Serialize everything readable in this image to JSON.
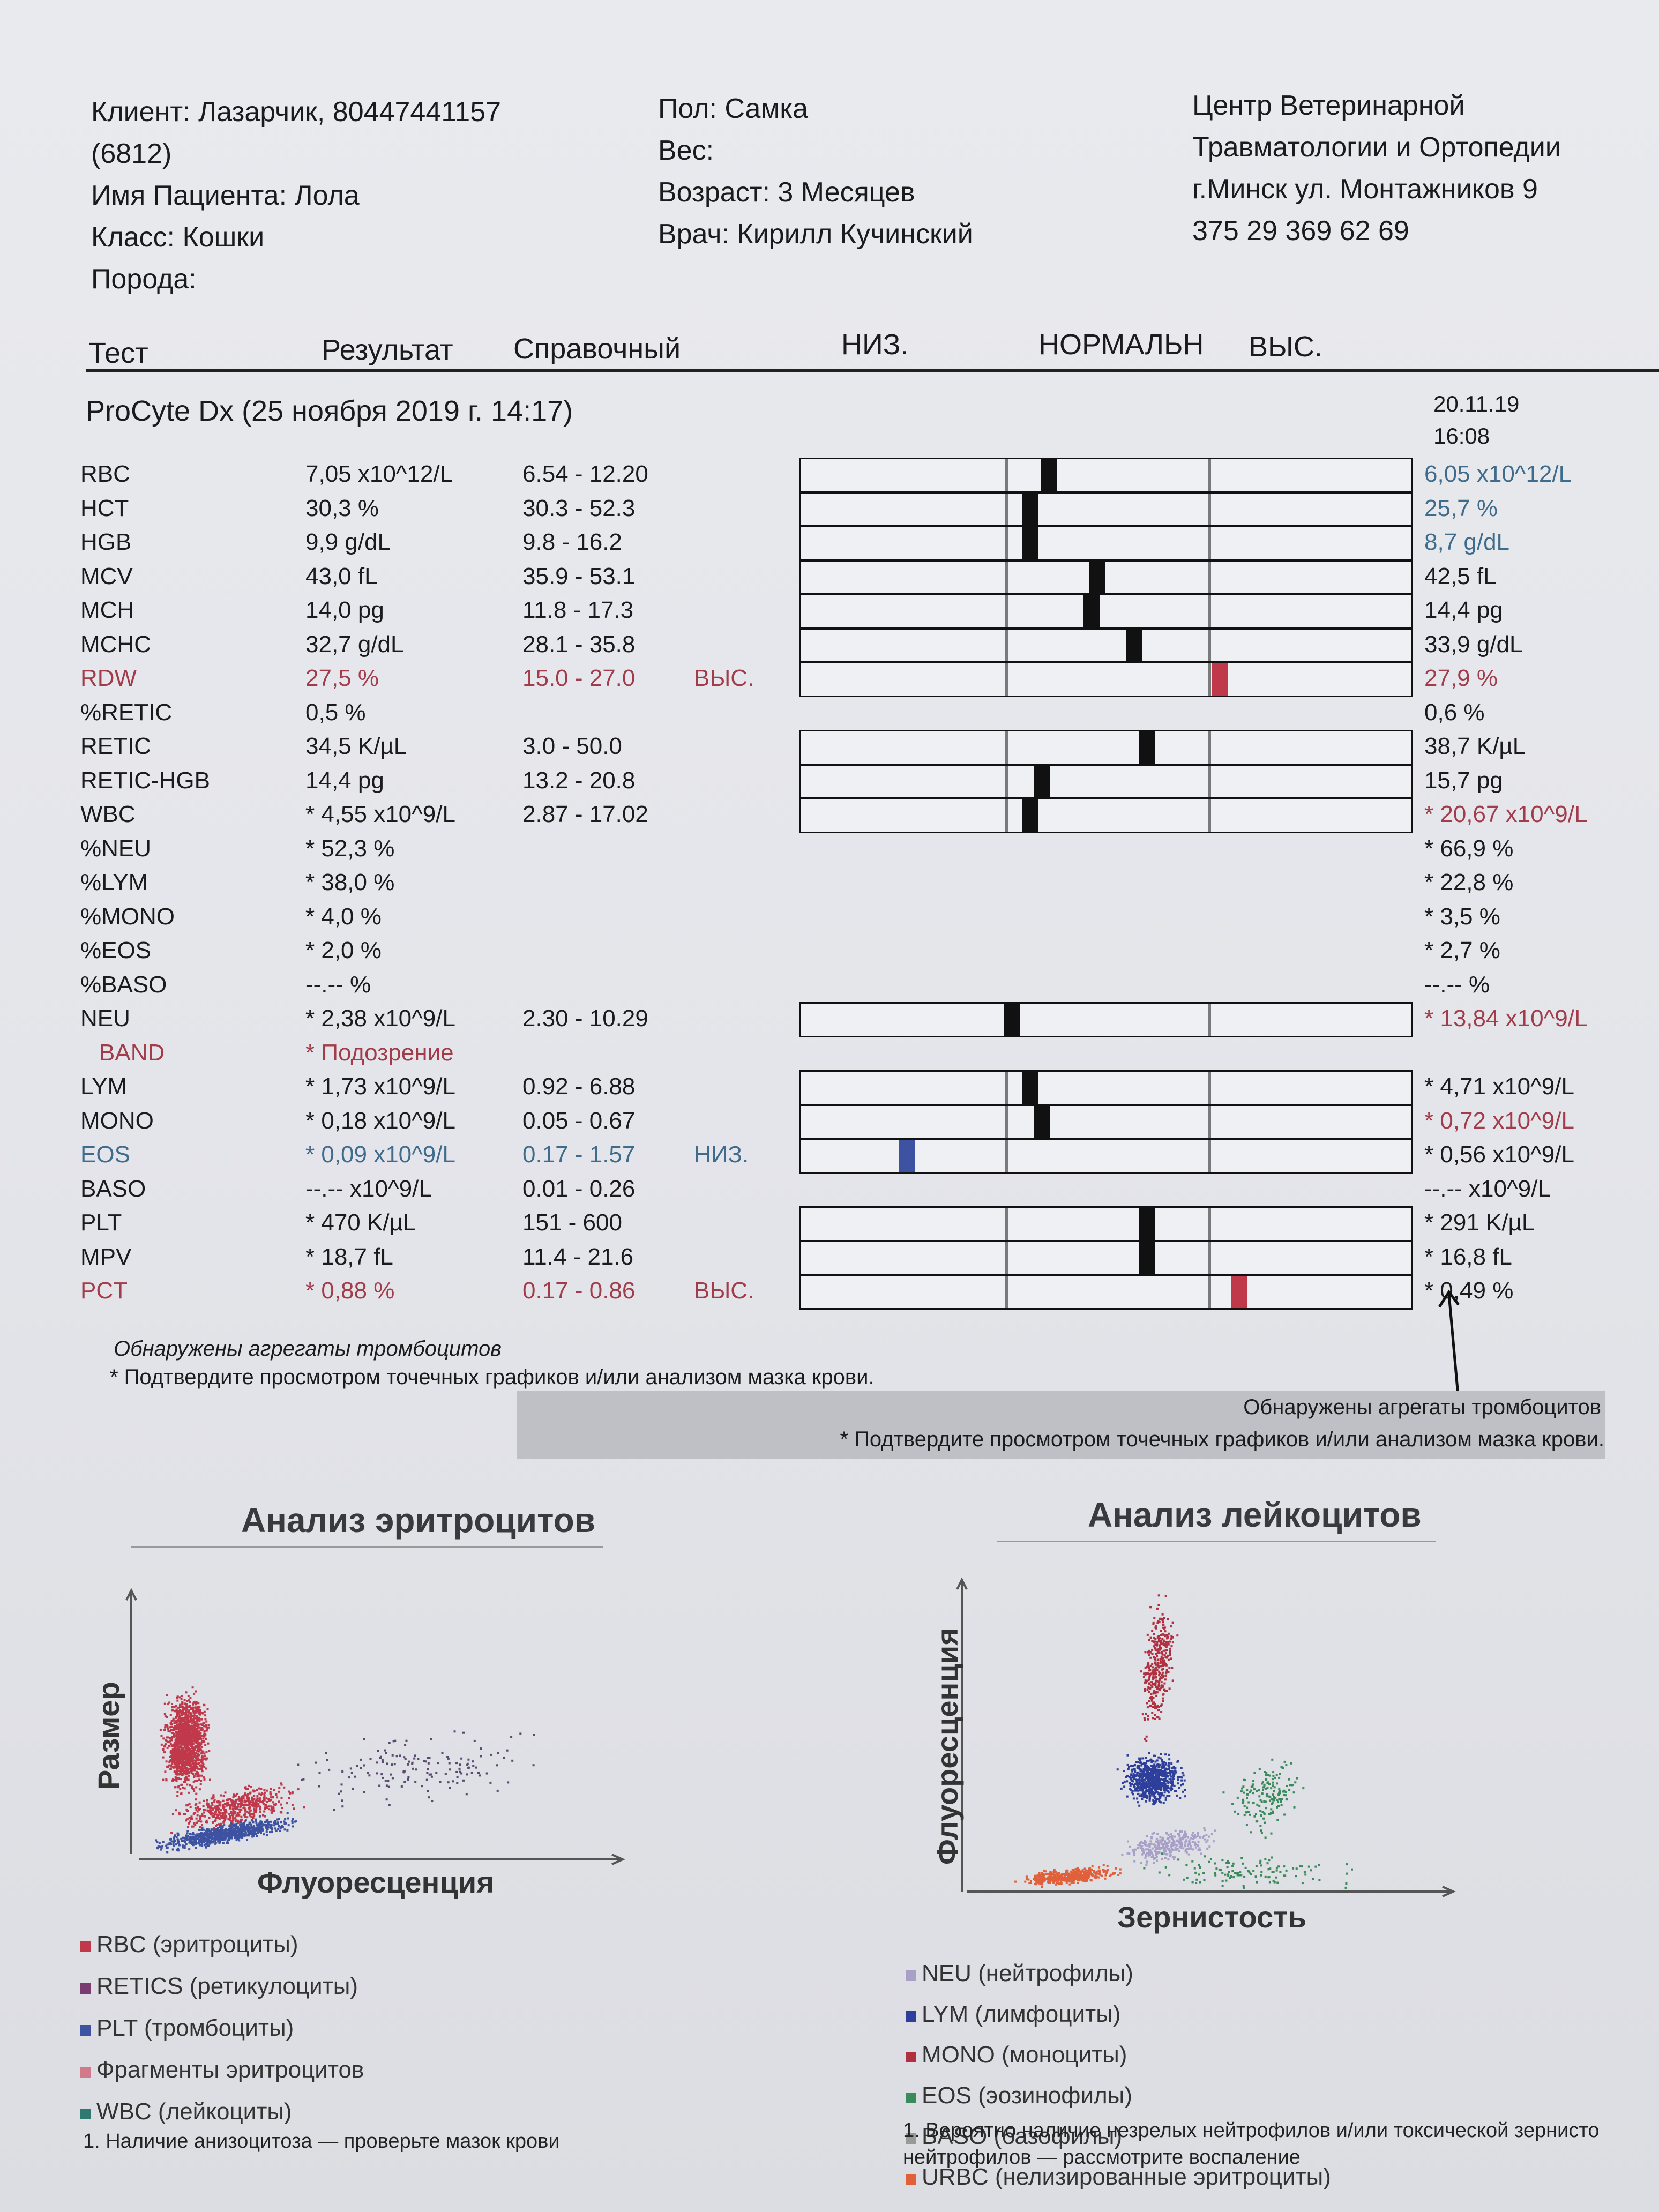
{
  "header": {
    "client_line1": "Клиент: Лазарчик, 80447441157",
    "client_line2": "(6812)",
    "patient": "Имя Пациента: Лола",
    "class": "Класс: Кошки",
    "breed": "Порода:",
    "sex": "Пол: Самка",
    "weight": "Вес:",
    "age": "Возраст: 3 Месяцев",
    "doctor": "Врач: Кирилл Кучинский",
    "clinic_line1": "Центр Ветеринарной",
    "clinic_line2": "Травматологии и Ортопедии",
    "clinic_line3": "г.Минск ул. Монтажников 9",
    "clinic_phone": "375 29 369 62 69"
  },
  "columns": {
    "test": "Тест",
    "result": "Результат",
    "reference": "Справочный",
    "low": "НИЗ.",
    "normal": "НОРМАЛЬН",
    "high": "ВЫС."
  },
  "run": {
    "title": "ProCyte Dx (25 ноября 2019 г. 14:17)",
    "prev_date": "20.11.19",
    "prev_time": "16:08"
  },
  "rows": [
    {
      "name": "RBC",
      "result": "7,05 x10^12/L",
      "ref": "6.54 - 12.20",
      "flag": "",
      "prev": "6,05 x10^12/L",
      "mark": 0.39,
      "color": "",
      "prevcolor": "teal"
    },
    {
      "name": "HCT",
      "result": "30,3 %",
      "ref": "30.3 - 52.3",
      "flag": "",
      "prev": "25,7 %",
      "mark": 0.36,
      "color": "",
      "prevcolor": "teal"
    },
    {
      "name": "HGB",
      "result": "9,9 g/dL",
      "ref": "9.8 - 16.2",
      "flag": "",
      "prev": "8,7 g/dL",
      "mark": 0.36,
      "color": "",
      "prevcolor": "teal"
    },
    {
      "name": "MCV",
      "result": "43,0 fL",
      "ref": "35.9 - 53.1",
      "flag": "",
      "prev": "42,5 fL",
      "mark": 0.47,
      "color": "",
      "prevcolor": ""
    },
    {
      "name": "MCH",
      "result": "14,0 pg",
      "ref": "11.8 - 17.3",
      "flag": "",
      "prev": "14,4 pg",
      "mark": 0.46,
      "color": "",
      "prevcolor": ""
    },
    {
      "name": "MCHC",
      "result": "32,7 g/dL",
      "ref": "28.1 - 35.8",
      "flag": "",
      "prev": "33,9 g/dL",
      "mark": 0.53,
      "color": "",
      "prevcolor": ""
    },
    {
      "name": "RDW",
      "result": "27,5 %",
      "ref": "15.0 - 27.0",
      "flag": "ВЫС.",
      "prev": "27,9 %",
      "mark": 0.67,
      "color": "red",
      "prevcolor": "red"
    },
    {
      "name": "%RETIC",
      "result": "0,5 %",
      "ref": "",
      "flag": "",
      "prev": "0,6 %",
      "mark": null,
      "color": "",
      "prevcolor": ""
    },
    {
      "name": "RETIC",
      "result": "34,5 K/µL",
      "ref": "3.0 - 50.0",
      "flag": "",
      "prev": "38,7 K/µL",
      "mark": 0.55,
      "color": "",
      "prevcolor": ""
    },
    {
      "name": "RETIC-HGB",
      "result": "14,4 pg",
      "ref": "13.2 - 20.8",
      "flag": "",
      "prev": "15,7 pg",
      "mark": 0.38,
      "color": "",
      "prevcolor": ""
    },
    {
      "name": "WBC",
      "result": "* 4,55 x10^9/L",
      "ref": "2.87 - 17.02",
      "flag": "",
      "prev": "* 20,67 x10^9/L",
      "mark": 0.36,
      "color": "",
      "prevcolor": "red"
    },
    {
      "name": "%NEU",
      "result": "* 52,3 %",
      "ref": "",
      "flag": "",
      "prev": "* 66,9 %",
      "mark": null,
      "color": "",
      "prevcolor": ""
    },
    {
      "name": "%LYM",
      "result": "* 38,0 %",
      "ref": "",
      "flag": "",
      "prev": "* 22,8 %",
      "mark": null,
      "color": "",
      "prevcolor": ""
    },
    {
      "name": "%MONO",
      "result": "* 4,0 %",
      "ref": "",
      "flag": "",
      "prev": "* 3,5 %",
      "mark": null,
      "color": "",
      "prevcolor": ""
    },
    {
      "name": "%EOS",
      "result": "* 2,0 %",
      "ref": "",
      "flag": "",
      "prev": "* 2,7 %",
      "mark": null,
      "color": "",
      "prevcolor": ""
    },
    {
      "name": "%BASO",
      "result": "--.--  %",
      "ref": "",
      "flag": "",
      "prev": "--.--  %",
      "mark": null,
      "color": "",
      "prevcolor": ""
    },
    {
      "name": "NEU",
      "result": "* 2,38 x10^9/L",
      "ref": "2.30 - 10.29",
      "flag": "",
      "prev": "* 13,84 x10^9/L",
      "mark": 0.33,
      "color": "",
      "prevcolor": "red"
    },
    {
      "name": "BAND",
      "result": "* Подозрение",
      "ref": "",
      "flag": "",
      "prev": "",
      "mark": null,
      "color": "red",
      "prevcolor": ""
    },
    {
      "name": "LYM",
      "result": "* 1,73 x10^9/L",
      "ref": "0.92 - 6.88",
      "flag": "",
      "prev": "* 4,71 x10^9/L",
      "mark": 0.36,
      "color": "",
      "prevcolor": ""
    },
    {
      "name": "MONO",
      "result": "* 0,18 x10^9/L",
      "ref": "0.05 - 0.67",
      "flag": "",
      "prev": "* 0,72 x10^9/L",
      "mark": 0.38,
      "color": "",
      "prevcolor": "red"
    },
    {
      "name": "EOS",
      "result": "* 0,09 x10^9/L",
      "ref": "0.17 - 1.57",
      "flag": "НИЗ.",
      "prev": "* 0,56 x10^9/L",
      "mark": 0.16,
      "color": "blue",
      "prevcolor": ""
    },
    {
      "name": "BASO",
      "result": "--.--  x10^9/L",
      "ref": "0.01 - 0.26",
      "flag": "",
      "prev": "--.--  x10^9/L",
      "mark": null,
      "color": "",
      "prevcolor": ""
    },
    {
      "name": "PLT",
      "result": "* 470 K/µL",
      "ref": "151 - 600",
      "flag": "",
      "prev": "* 291 K/µL",
      "mark": 0.55,
      "color": "",
      "prevcolor": ""
    },
    {
      "name": "MPV",
      "result": "* 18,7 fL",
      "ref": "11.4 - 21.6",
      "flag": "",
      "prev": "* 16,8 fL",
      "mark": 0.55,
      "color": "",
      "prevcolor": ""
    },
    {
      "name": "PCT",
      "result": "* 0,88 %",
      "ref": "0.17 - 0.86",
      "flag": "ВЫС.",
      "prev": "* 0,49 %",
      "mark": 0.7,
      "color": "red",
      "prevcolor": ""
    }
  ],
  "notes": {
    "current_line1": "Обнаружены агрегаты тромбоцитов",
    "current_line2": "* Подтвердите просмотром точечных графиков и/или анализом мазка крови.",
    "prev_line1": "Обнаружены агрегаты тромбоцитов",
    "prev_line2": "* Подтвердите просмотром точечных графиков и/или анализом мазка крови."
  },
  "rbc_chart": {
    "title": "Анализ эритроцитов",
    "ylabel": "Размер",
    "xlabel": "Флуоресценция",
    "legend": [
      {
        "label": "RBC (эритроциты)",
        "color": "#c0394a"
      },
      {
        "label": "RETICS (ретикулоциты)",
        "color": "#7a3c70"
      },
      {
        "label": "PLT (тромбоциты)",
        "color": "#3d52a0"
      },
      {
        "label": "Фрагменты эритроцитов",
        "color": "#d07a8a"
      },
      {
        "label": "WBC (лейкоциты)",
        "color": "#2e7a70"
      }
    ],
    "footnote": "1. Наличие анизоцитоза — проверьте мазок крови"
  },
  "wbc_chart": {
    "title": "Анализ лейкоцитов",
    "ylabel": "Флуоресценция",
    "xlabel": "Зернистость",
    "legend": [
      {
        "label": "NEU (нейтрофилы)",
        "color": "#a9a0c8"
      },
      {
        "label": "LYM (лимфоциты)",
        "color": "#2d3f9a"
      },
      {
        "label": "MONO (моноциты)",
        "color": "#b03040"
      },
      {
        "label": "EOS (эозинофилы)",
        "color": "#3a8a5a"
      },
      {
        "label": "BASO (базофилы)",
        "color": "#999999"
      },
      {
        "label": "URBC (нелизированные эритроциты)",
        "color": "#e0603a"
      }
    ],
    "footnote_line1": "1. Вероятно наличие незрелых нейтрофилов и/или токсической зернисто",
    "footnote_line2": "нейтрофилов — рассмотрите воспаление"
  }
}
